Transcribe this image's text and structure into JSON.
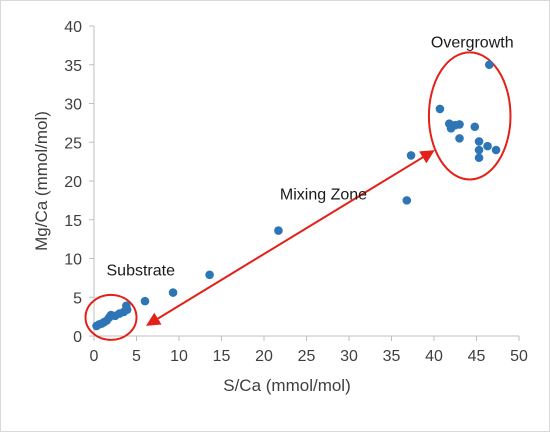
{
  "chart_data": {
    "type": "scatter",
    "title": "",
    "xlabel": "S/Ca (mmol/mol)",
    "ylabel": "Mg/Ca (mmol/mol)",
    "xlim": [
      0,
      50
    ],
    "ylim": [
      0,
      40
    ],
    "x_ticks": [
      0,
      5,
      10,
      15,
      20,
      25,
      30,
      35,
      40,
      45,
      50
    ],
    "y_ticks": [
      0,
      5,
      10,
      15,
      20,
      25,
      30,
      35,
      40
    ],
    "grid": false,
    "legend": "none",
    "marker_color": "#2e75b6",
    "annotation_color": "#e32119",
    "series": [
      {
        "points": [
          [
            0.3,
            1.3
          ],
          [
            0.6,
            1.5
          ],
          [
            0.9,
            1.6
          ],
          [
            1.2,
            1.8
          ],
          [
            1.5,
            2.0
          ],
          [
            1.8,
            2.4
          ],
          [
            2.0,
            2.7
          ],
          [
            2.5,
            2.6
          ],
          [
            3.0,
            2.9
          ],
          [
            3.5,
            3.1
          ],
          [
            3.9,
            3.4
          ],
          [
            3.8,
            3.9
          ],
          [
            6.0,
            4.5
          ],
          [
            9.3,
            5.6
          ],
          [
            13.6,
            7.9
          ],
          [
            21.7,
            13.6
          ],
          [
            36.8,
            17.5
          ],
          [
            37.3,
            23.3
          ],
          [
            40.7,
            29.3
          ],
          [
            41.8,
            27.4
          ],
          [
            42.0,
            26.8
          ],
          [
            42.5,
            27.2
          ],
          [
            43.0,
            27.3
          ],
          [
            43.0,
            25.5
          ],
          [
            44.8,
            27.0
          ],
          [
            45.3,
            25.1
          ],
          [
            45.3,
            24.0
          ],
          [
            45.3,
            23.0
          ],
          [
            46.3,
            24.5
          ],
          [
            47.3,
            24.0
          ],
          [
            46.5,
            35.0
          ]
        ]
      }
    ],
    "annotations": [
      {
        "text": "Overgrowth",
        "x": 44.5,
        "y": 37.2
      },
      {
        "text": "Mixing Zone",
        "x": 27.0,
        "y": 17.6
      },
      {
        "text": "Substrate",
        "x": 5.5,
        "y": 7.8
      }
    ],
    "regions": [
      {
        "name": "substrate",
        "cx": 2.0,
        "cy": 2.4,
        "rx": 3.0,
        "ry": 2.9
      },
      {
        "name": "overgrowth",
        "cx": 44.2,
        "cy": 28.4,
        "rx": 4.8,
        "ry": 8.2
      }
    ],
    "arrow": {
      "x1": 6.4,
      "y1": 1.5,
      "x2": 39.8,
      "y2": 23.8
    }
  }
}
